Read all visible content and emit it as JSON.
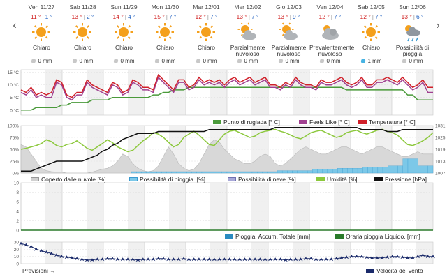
{
  "days": [
    {
      "name": "Ven 11/27",
      "max": "11 °",
      "min": "1 °",
      "icon": "sun-icon",
      "desc": "Chiaro",
      "precip": "0 mm",
      "rain": false
    },
    {
      "name": "Sab 11/28",
      "max": "13 °",
      "min": "2 °",
      "icon": "sun-icon",
      "desc": "Chiaro",
      "precip": "0 mm",
      "rain": false
    },
    {
      "name": "Sun 11/29",
      "max": "14 °",
      "min": "4 °",
      "icon": "sun-icon",
      "desc": "Chiaro",
      "precip": "0 mm",
      "rain": false
    },
    {
      "name": "Mon 11/30",
      "max": "15 °",
      "min": "7 °",
      "icon": "sun-icon",
      "desc": "Chiaro",
      "precip": "0 mm",
      "rain": false
    },
    {
      "name": "Mar 12/01",
      "max": "12 °",
      "min": "7 °",
      "icon": "sun-icon",
      "desc": "Chiaro",
      "precip": "0 mm",
      "rain": false
    },
    {
      "name": "Mer 12/02",
      "max": "13 °",
      "min": "7 °",
      "icon": "partly-cloudy-icon",
      "desc": "Parzialmente nuvoloso",
      "precip": "0 mm",
      "rain": false
    },
    {
      "name": "Gio 12/03",
      "max": "13 °",
      "min": "9 °",
      "icon": "partly-cloudy-icon",
      "desc": "Parzialmente nuvoloso",
      "precip": "0 mm",
      "rain": false
    },
    {
      "name": "Ven 12/04",
      "max": "12 °",
      "min": "7 °",
      "icon": "mostly-cloudy-icon",
      "desc": "Prevalentemente nuvoloso",
      "precip": "0 mm",
      "rain": false
    },
    {
      "name": "Sab 12/05",
      "max": "12 °",
      "min": "7 °",
      "icon": "sun-icon",
      "desc": "Chiaro",
      "precip": "1 mm",
      "rain": true
    },
    {
      "name": "Sun 12/06",
      "max": "13 °",
      "min": "6 °",
      "icon": "rain-chance-icon",
      "desc": "Possibilità di pioggia",
      "precip": "0 mm",
      "rain": false
    }
  ],
  "temp_chart": {
    "yticks": [
      "15 °C",
      "10 °C",
      "5 °C",
      "0 °C"
    ],
    "legend": [
      "Punto di rugiada [° C]",
      "Feels Like [° C]",
      "Temperatura [° C]"
    ],
    "temperature": [
      8,
      7,
      9,
      6,
      7,
      6,
      7,
      12,
      11,
      6,
      5,
      7,
      7,
      12,
      10,
      9,
      8,
      7,
      11,
      10,
      7,
      8,
      12,
      11,
      9,
      9,
      8,
      14,
      12,
      10,
      8,
      12,
      12,
      9,
      10,
      13,
      11,
      12,
      11,
      12,
      10,
      12,
      13,
      11,
      12,
      13,
      11,
      12,
      13,
      10,
      10,
      9,
      11,
      10,
      13,
      11,
      10,
      10,
      9,
      12,
      11,
      11,
      12,
      13,
      11,
      10,
      11,
      13,
      10,
      10,
      12,
      12,
      13,
      12,
      11,
      13,
      11,
      9,
      10,
      12,
      9,
      9
    ],
    "feels_like": [
      7,
      6,
      8,
      5,
      6,
      5,
      5,
      11,
      10,
      5,
      4,
      6,
      6,
      11,
      9,
      8,
      7,
      6,
      10,
      9,
      6,
      7,
      11,
      10,
      8,
      8,
      7,
      13,
      11,
      9,
      7,
      11,
      11,
      8,
      9,
      12,
      10,
      11,
      10,
      11,
      9,
      11,
      12,
      10,
      11,
      12,
      10,
      11,
      12,
      9,
      9,
      8,
      10,
      9,
      12,
      10,
      9,
      9,
      8,
      11,
      10,
      10,
      11,
      12,
      10,
      9,
      10,
      12,
      9,
      9,
      11,
      11,
      12,
      11,
      10,
      12,
      10,
      8,
      9,
      11,
      7,
      7
    ],
    "dew_point": [
      0,
      0,
      0,
      1,
      1,
      1,
      1,
      1,
      2,
      2,
      3,
      3,
      3,
      3,
      4,
      4,
      4,
      4,
      5,
      5,
      5,
      5,
      5,
      5,
      5,
      5,
      6,
      6,
      7,
      7,
      8,
      8,
      8,
      9,
      9,
      9,
      9,
      9,
      9,
      9,
      9,
      9,
      9,
      9,
      9,
      9,
      9,
      9,
      9,
      9,
      9,
      9,
      9,
      9,
      9,
      9,
      9,
      9,
      9,
      9,
      9,
      9,
      9,
      9,
      8,
      8,
      8,
      8,
      8,
      8,
      8,
      8,
      8,
      8,
      8,
      8,
      6,
      6,
      4,
      4,
      4,
      4
    ],
    "ylim": [
      -2,
      16
    ]
  },
  "mid_chart": {
    "yticks_left": [
      "100%",
      "75%",
      "50%",
      "25%",
      "0%"
    ],
    "yticks_right": [
      "1031",
      "1025",
      "1019",
      "1013",
      "1007"
    ],
    "legend": [
      "Coperto dalle nuvole [%]",
      "Possibilità di pioggia. [%]",
      "Possibilità di neve [%]",
      "Umidità [%]",
      "Pressione [hPa]"
    ],
    "cloud": [
      60,
      55,
      40,
      25,
      10,
      5,
      3,
      2,
      2,
      0,
      0,
      0,
      0,
      0,
      2,
      5,
      8,
      10,
      15,
      25,
      40,
      35,
      20,
      10,
      5,
      3,
      5,
      15,
      35,
      55,
      40,
      20,
      10,
      5,
      8,
      20,
      40,
      60,
      70,
      65,
      50,
      40,
      30,
      25,
      20,
      20,
      25,
      35,
      40,
      35,
      20,
      15,
      20,
      30,
      40,
      50,
      55,
      50,
      45,
      40,
      40,
      45,
      50,
      55,
      55,
      50,
      45,
      40,
      45,
      50,
      55,
      55,
      50,
      45,
      40,
      35,
      35,
      40,
      45,
      40,
      40,
      40
    ],
    "rain_chance": [
      0,
      0,
      0,
      0,
      0,
      0,
      0,
      0,
      0,
      0,
      0,
      0,
      0,
      0,
      0,
      0,
      0,
      0,
      0,
      0,
      0,
      0,
      3,
      3,
      3,
      3,
      3,
      3,
      3,
      3,
      3,
      3,
      3,
      3,
      3,
      3,
      3,
      3,
      3,
      3,
      3,
      3,
      3,
      3,
      3,
      3,
      3,
      3,
      3,
      3,
      3,
      5,
      5,
      5,
      5,
      5,
      5,
      5,
      8,
      8,
      8,
      8,
      8,
      10,
      10,
      10,
      10,
      10,
      12,
      12,
      12,
      12,
      12,
      15,
      15,
      15,
      30,
      30,
      30,
      15,
      15,
      15
    ],
    "humidity": [
      50,
      52,
      55,
      58,
      62,
      70,
      66,
      58,
      55,
      60,
      62,
      68,
      60,
      52,
      48,
      55,
      62,
      70,
      64,
      55,
      50,
      45,
      48,
      58,
      68,
      75,
      85,
      82,
      75,
      65,
      55,
      60,
      75,
      82,
      88,
      80,
      70,
      60,
      58,
      70,
      82,
      88,
      90,
      85,
      80,
      75,
      78,
      85,
      88,
      90,
      92,
      88,
      85,
      80,
      75,
      72,
      78,
      85,
      88,
      90,
      85,
      80,
      75,
      78,
      85,
      88,
      90,
      85,
      82,
      86,
      90,
      92,
      88,
      85,
      80,
      70,
      60,
      58,
      62,
      68,
      75,
      85
    ],
    "pressure": [
      1008,
      1008,
      1008,
      1009,
      1010,
      1011,
      1012,
      1013,
      1013,
      1013,
      1013,
      1013,
      1013,
      1014,
      1015,
      1016,
      1018,
      1019,
      1021,
      1022,
      1024,
      1025,
      1026,
      1027,
      1027,
      1027,
      1027,
      1028,
      1028,
      1028,
      1028,
      1028,
      1028,
      1028,
      1028,
      1028,
      1028,
      1029,
      1029,
      1029,
      1029,
      1029,
      1029,
      1029,
      1029,
      1029,
      1029,
      1029,
      1029,
      1029,
      1030,
      1030,
      1030,
      1030,
      1030,
      1030,
      1030,
      1030,
      1030,
      1030,
      1030,
      1030,
      1030,
      1030,
      1030,
      1030,
      1030,
      1029,
      1029,
      1029,
      1029,
      1029,
      1028,
      1028,
      1028,
      1029,
      1029,
      1029,
      1029,
      1029,
      1029,
      1029
    ],
    "pressure_ylim": [
      1007,
      1031
    ]
  },
  "rain_chart": {
    "yticks": [
      "10",
      "8",
      "6",
      "4",
      "2",
      "0"
    ],
    "legend": [
      "Pioggia. Accum. Totale [mm]",
      "Oraria pioggia Liquido. [mm]"
    ]
  },
  "wind_chart": {
    "yticks": [
      "30",
      "20",
      "10",
      "0"
    ],
    "legend": [
      "Velocità del vento"
    ],
    "speed": [
      28,
      26,
      24,
      20,
      18,
      16,
      14,
      12,
      10,
      9,
      8,
      7,
      6,
      5,
      5,
      6,
      6,
      7,
      7,
      6,
      6,
      6,
      6,
      5,
      6,
      6,
      6,
      7,
      7,
      6,
      6,
      6,
      7,
      6,
      6,
      6,
      6,
      6,
      6,
      6,
      6,
      6,
      6,
      6,
      6,
      6,
      6,
      6,
      6,
      6,
      6,
      6,
      5,
      6,
      6,
      6,
      7,
      7,
      6,
      6,
      6,
      6,
      7,
      8,
      9,
      10,
      10,
      10,
      9,
      8,
      8,
      8,
      9,
      10,
      10,
      9,
      8,
      8,
      10,
      12,
      10,
      10
    ],
    "ylim": [
      0,
      30
    ]
  },
  "forecast_link": "Previsioni →",
  "colors": {
    "temperature": "#d0202a",
    "feels_like": "#a04090",
    "dew_point": "#4a9a3a",
    "cloud": "#d0d0d0",
    "rain_chance": "#7cc8e8",
    "snow": "#a8a8d8",
    "humidity": "#8cc83c",
    "pressure": "#111111",
    "rain_total": "#2a8ac0",
    "rain_hourly": "#2a7a2a",
    "wind": "#1a2a6a"
  }
}
